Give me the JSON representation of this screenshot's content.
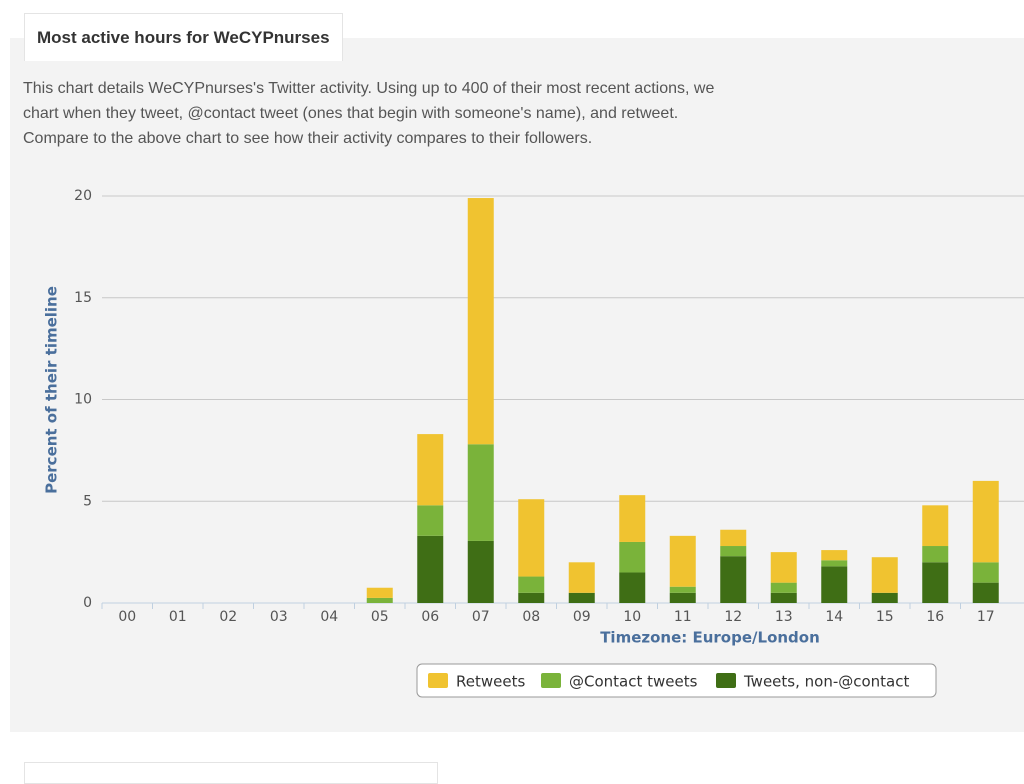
{
  "header": {
    "title": "Most active hours for WeCYPnurses"
  },
  "description": [
    "This chart details WeCYPnurses's Twitter activity. Using up to 400 of their most recent actions, we",
    "chart when they tweet, @contact tweet (ones that begin with someone's name), and retweet.",
    "Compare to the above chart to see how their activity compares to their followers."
  ],
  "chart_data": {
    "type": "stacked-bar",
    "y_label": "Percent of their timeline",
    "x_label": "Timezone: Europe/London",
    "categories": [
      "00",
      "01",
      "02",
      "03",
      "04",
      "05",
      "06",
      "07",
      "08",
      "09",
      "10",
      "11",
      "12",
      "13",
      "14",
      "15",
      "16",
      "17"
    ],
    "series": [
      {
        "name": "Retweets",
        "color": "#f0c330",
        "values": [
          0,
          0,
          0,
          0,
          0,
          0.5,
          3.5,
          12.1,
          3.8,
          1.5,
          2.3,
          2.5,
          0.8,
          1.5,
          0.5,
          1.75,
          2.0,
          4.0
        ]
      },
      {
        "name": "@Contact tweets",
        "color": "#7ab33a",
        "values": [
          0,
          0,
          0,
          0,
          0,
          0.25,
          1.5,
          4.75,
          0.8,
          0,
          1.5,
          0.3,
          0.5,
          0.5,
          0.3,
          0,
          0.8,
          1.0
        ]
      },
      {
        "name": "Tweets, non-@contact",
        "color": "#3f6e15",
        "values": [
          0,
          0,
          0,
          0,
          0,
          0,
          3.3,
          3.05,
          0.5,
          0.5,
          1.5,
          0.5,
          2.3,
          0.5,
          1.8,
          0.5,
          2.0,
          1.0
        ]
      }
    ],
    "ylim": [
      0,
      20
    ],
    "yticks": [
      0,
      5,
      10,
      15,
      20
    ],
    "grid": true,
    "legend": "bottom"
  }
}
